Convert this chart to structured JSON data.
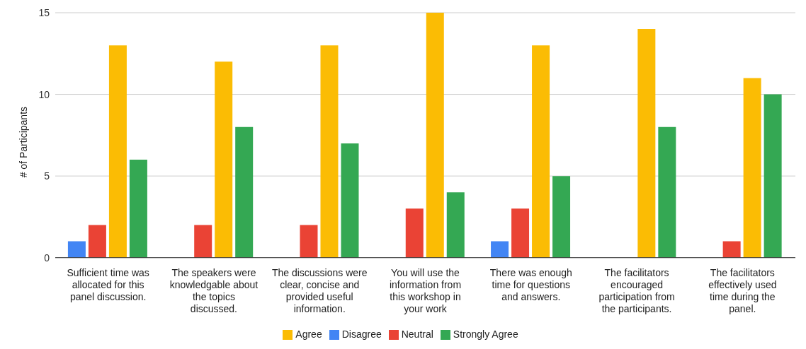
{
  "chart_data": {
    "type": "bar",
    "ylabel": "# of Participants",
    "categories": [
      "Sufficient time was allocated for this panel discussion.",
      "The speakers were knowledgable about the topics discussed.",
      "The discussions were clear, concise and provided useful information.",
      "You will use the information from this workshop in your work",
      "There was enough time for questions and answers.",
      "The facilitators encouraged participation from the participants.",
      "The facilitators effectively used time during the panel."
    ],
    "series": [
      {
        "name": "Disagree",
        "color": "#4285f4",
        "values": [
          1,
          null,
          null,
          null,
          1,
          null,
          null
        ]
      },
      {
        "name": "Neutral",
        "color": "#ea4335",
        "values": [
          2,
          2,
          2,
          3,
          3,
          null,
          1
        ]
      },
      {
        "name": "Agree",
        "color": "#fbbc04",
        "values": [
          13,
          12,
          13,
          15,
          13,
          14,
          11
        ]
      },
      {
        "name": "Strongly Agree",
        "color": "#34a853",
        "values": [
          6,
          8,
          7,
          4,
          5,
          8,
          10
        ]
      }
    ],
    "ylim": [
      0,
      15
    ],
    "yticks": [
      0,
      5,
      10,
      15
    ],
    "grid": "y",
    "legend": "bottom"
  }
}
